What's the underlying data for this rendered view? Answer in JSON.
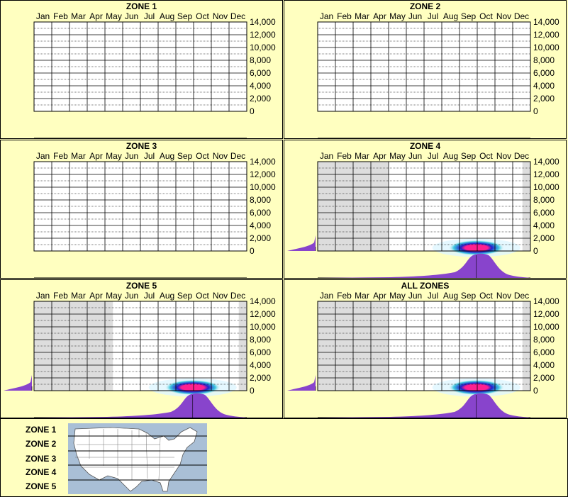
{
  "months": [
    "Jan",
    "Feb",
    "Mar",
    "Apr",
    "May",
    "Jun",
    "Jul",
    "Aug",
    "Sep",
    "Oct",
    "Nov",
    "Dec"
  ],
  "y_ticks": [
    "14,000",
    "12,000",
    "10,000",
    "8,000",
    "6,000",
    "4,000",
    "2,000",
    "0"
  ],
  "colors": {
    "background": "#ffffc0",
    "inactive_month": "#dddddd",
    "density_purple": "#8844cc",
    "heat_core": "#ff2090",
    "heat_mid": "#2020cc",
    "heat_outer": "#40c8e0"
  },
  "chart_data": [
    {
      "type": "heatmap",
      "title": "ZONE 1",
      "x": "months",
      "ylim": [
        0,
        14000
      ],
      "inactive_months": [],
      "hot_months": [],
      "peak_elevation": null,
      "elevation_density": "none",
      "season_density": "none"
    },
    {
      "type": "heatmap",
      "title": "ZONE 2",
      "x": "months",
      "ylim": [
        0,
        14000
      ],
      "inactive_months": [],
      "hot_months": [],
      "peak_elevation": null,
      "elevation_density": "none",
      "season_density": "none"
    },
    {
      "type": "heatmap",
      "title": "ZONE 3",
      "x": "months",
      "ylim": [
        0,
        14000
      ],
      "inactive_months": [],
      "hot_months": [],
      "peak_elevation": null,
      "elevation_density": "none",
      "season_density": "none"
    },
    {
      "type": "heatmap",
      "title": "ZONE 4",
      "x": "months",
      "ylim": [
        0,
        14000
      ],
      "inactive_months": [
        "Jan",
        "Feb",
        "Mar",
        "Apr"
      ],
      "partial_months": [
        "Dec"
      ],
      "hot_months": [
        "Sep",
        "Oct"
      ],
      "peak_month": "Oct",
      "peak_elevation": 500,
      "elevation_density": "concentrated near 0",
      "season_density": "peak in Sep-Oct"
    },
    {
      "type": "heatmap",
      "title": "ZONE 5",
      "x": "months",
      "ylim": [
        0,
        14000
      ],
      "inactive_months": [
        "Jan",
        "Feb",
        "Mar",
        "Apr"
      ],
      "partial_months": [
        "May",
        "Dec"
      ],
      "hot_months": [
        "Sep",
        "Oct"
      ],
      "peak_month": "Oct",
      "peak_elevation": 500,
      "elevation_density": "concentrated near 0",
      "season_density": "peak in Sep-Oct"
    },
    {
      "type": "heatmap",
      "title": "ALL ZONES",
      "x": "months",
      "ylim": [
        0,
        14000
      ],
      "inactive_months": [
        "Jan",
        "Feb",
        "Mar",
        "Apr"
      ],
      "partial_months": [
        "Dec"
      ],
      "hot_months": [
        "Sep",
        "Oct"
      ],
      "peak_month": "Oct",
      "peak_elevation": 500,
      "elevation_density": "concentrated near 0",
      "season_density": "peak in Sep-Oct"
    }
  ],
  "legend": {
    "zones": [
      "ZONE 1",
      "ZONE 2",
      "ZONE 3",
      "ZONE 4",
      "ZONE 5"
    ],
    "map_icon": "us-map-icon"
  }
}
